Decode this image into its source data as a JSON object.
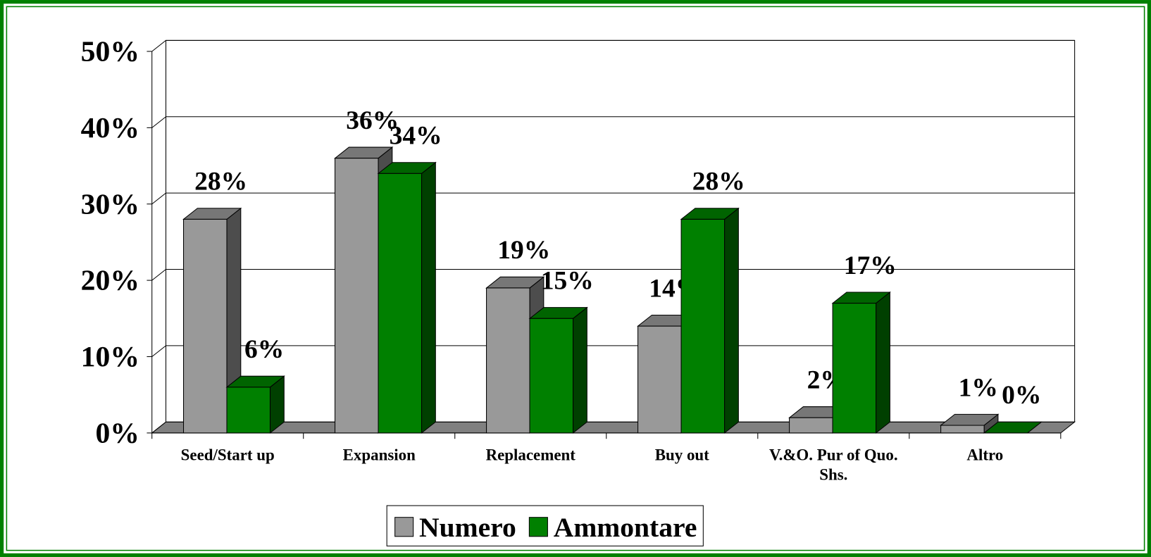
{
  "chart_data": {
    "type": "bar3d",
    "categories": [
      "Seed/Start up",
      "Expansion",
      "Replacement",
      "Buy out",
      "V.&O. Pur of Quo. Shs.",
      "Altro"
    ],
    "series": [
      {
        "name": "Numero",
        "color": "#999999",
        "values": [
          28,
          36,
          19,
          14,
          2,
          1
        ],
        "value_labels": [
          "28%",
          "36%",
          "19%",
          "14%",
          "2%",
          "1%"
        ]
      },
      {
        "name": "Ammontare",
        "color": "#008000",
        "values": [
          6,
          34,
          15,
          28,
          17,
          0
        ],
        "value_labels": [
          "6%",
          "34%",
          "15%",
          "28%",
          "17%",
          "0%"
        ]
      }
    ],
    "ylim": [
      0,
      50
    ],
    "yticks": [
      {
        "value": 0,
        "label": "0%"
      },
      {
        "value": 10,
        "label": "10%"
      },
      {
        "value": 20,
        "label": "20%"
      },
      {
        "value": 30,
        "label": "30%"
      },
      {
        "value": 40,
        "label": "40%"
      },
      {
        "value": 50,
        "label": "50%"
      }
    ],
    "grid": true,
    "legend": "bottom"
  }
}
